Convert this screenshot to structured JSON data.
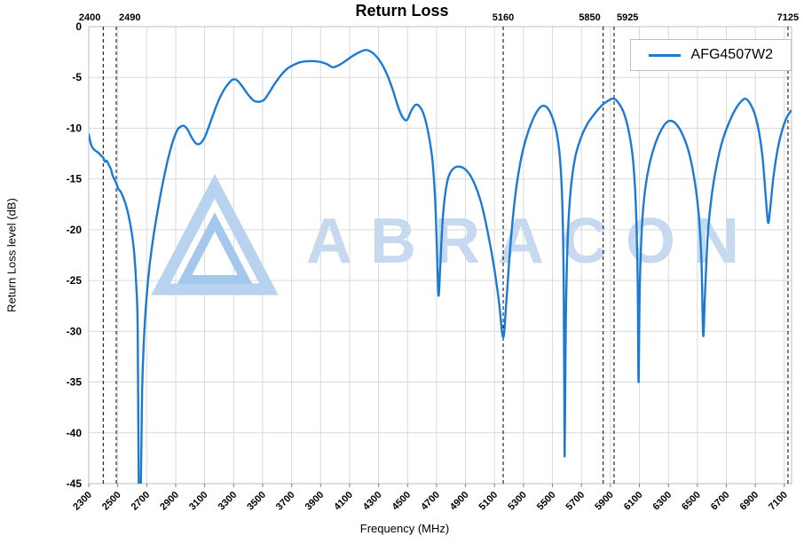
{
  "title": "Return Loss",
  "watermark": {
    "text": "ABRACON"
  },
  "colors": {
    "line": "#1b7ad3",
    "grid": "#d9d9d9",
    "border": "#bfbfbf",
    "vline": "#000000",
    "tick": "#808080",
    "watermark_outer": "#b7d3ef",
    "watermark_inner": "#a4c8ec",
    "watermark_text": "#c7d9ee"
  },
  "chart_data": {
    "type": "line",
    "title": "Return Loss",
    "xlabel": "Frequency (MHz)",
    "ylabel": "Return Loss level (dB)",
    "xlim": [
      2300,
      7150
    ],
    "ylim": [
      -45,
      0
    ],
    "xticks": [
      2300,
      2500,
      2700,
      2900,
      3100,
      3300,
      3500,
      3700,
      3900,
      4100,
      4300,
      4500,
      4700,
      4900,
      5100,
      5300,
      5500,
      5700,
      5900,
      6100,
      6300,
      6500,
      6700,
      6900,
      7100
    ],
    "yticks": [
      0,
      -5,
      -10,
      -15,
      -20,
      -25,
      -30,
      -35,
      -40,
      -45
    ],
    "grid": true,
    "legend_position": "top-right",
    "vlines": [
      {
        "x": 2400,
        "label": "2400",
        "align": "end"
      },
      {
        "x": 2490,
        "label": "2490",
        "align": "start"
      },
      {
        "x": 5160,
        "label": "5160",
        "align": "middle"
      },
      {
        "x": 5850,
        "label": "5850",
        "align": "end"
      },
      {
        "x": 5925,
        "label": "5925",
        "align": "start"
      },
      {
        "x": 7125,
        "label": "7125",
        "align": "middle"
      }
    ],
    "series": [
      {
        "name": "AFG4507W2",
        "color": "#1b7ad3",
        "points": [
          [
            2300,
            -10.6
          ],
          [
            2312,
            -11.4
          ],
          [
            2325,
            -11.9
          ],
          [
            2345,
            -12.2
          ],
          [
            2365,
            -12.4
          ],
          [
            2385,
            -12.7
          ],
          [
            2400,
            -12.9
          ],
          [
            2412,
            -13.3
          ],
          [
            2424,
            -13.2
          ],
          [
            2438,
            -13.6
          ],
          [
            2452,
            -14.0
          ],
          [
            2466,
            -14.7
          ],
          [
            2480,
            -15.1
          ],
          [
            2492,
            -15.5
          ],
          [
            2505,
            -16.0
          ],
          [
            2518,
            -16.2
          ],
          [
            2532,
            -16.6
          ],
          [
            2548,
            -17.2
          ],
          [
            2565,
            -18.0
          ],
          [
            2582,
            -19.1
          ],
          [
            2600,
            -20.6
          ],
          [
            2615,
            -22.5
          ],
          [
            2628,
            -25.5
          ],
          [
            2638,
            -30
          ],
          [
            2646,
            -47
          ],
          [
            2658,
            -47
          ],
          [
            2668,
            -36
          ],
          [
            2682,
            -30.5
          ],
          [
            2700,
            -26.5
          ],
          [
            2720,
            -23.5
          ],
          [
            2745,
            -20.8
          ],
          [
            2770,
            -18.6
          ],
          [
            2800,
            -16.2
          ],
          [
            2830,
            -14.1
          ],
          [
            2860,
            -12.3
          ],
          [
            2890,
            -10.9
          ],
          [
            2915,
            -10.1
          ],
          [
            2940,
            -9.8
          ],
          [
            2960,
            -9.8
          ],
          [
            2985,
            -10.2
          ],
          [
            3010,
            -10.9
          ],
          [
            3040,
            -11.5
          ],
          [
            3070,
            -11.5
          ],
          [
            3100,
            -10.9
          ],
          [
            3130,
            -9.8
          ],
          [
            3160,
            -8.6
          ],
          [
            3195,
            -7.3
          ],
          [
            3230,
            -6.3
          ],
          [
            3265,
            -5.6
          ],
          [
            3295,
            -5.2
          ],
          [
            3325,
            -5.3
          ],
          [
            3360,
            -5.9
          ],
          [
            3400,
            -6.7
          ],
          [
            3440,
            -7.3
          ],
          [
            3475,
            -7.4
          ],
          [
            3510,
            -7.2
          ],
          [
            3545,
            -6.5
          ],
          [
            3580,
            -5.7
          ],
          [
            3620,
            -4.9
          ],
          [
            3665,
            -4.2
          ],
          [
            3710,
            -3.8
          ],
          [
            3760,
            -3.5
          ],
          [
            3810,
            -3.4
          ],
          [
            3860,
            -3.4
          ],
          [
            3905,
            -3.5
          ],
          [
            3945,
            -3.7
          ],
          [
            3985,
            -4.0
          ],
          [
            4025,
            -3.8
          ],
          [
            4070,
            -3.4
          ],
          [
            4120,
            -2.9
          ],
          [
            4170,
            -2.5
          ],
          [
            4215,
            -2.3
          ],
          [
            4260,
            -2.6
          ],
          [
            4310,
            -3.4
          ],
          [
            4355,
            -4.6
          ],
          [
            4395,
            -6.1
          ],
          [
            4435,
            -7.9
          ],
          [
            4465,
            -8.9
          ],
          [
            4495,
            -9.2
          ],
          [
            4525,
            -8.3
          ],
          [
            4555,
            -7.7
          ],
          [
            4585,
            -7.9
          ],
          [
            4615,
            -8.8
          ],
          [
            4645,
            -10.6
          ],
          [
            4672,
            -13.2
          ],
          [
            4692,
            -17.5
          ],
          [
            4705,
            -23
          ],
          [
            4714,
            -26.5
          ],
          [
            4726,
            -23.5
          ],
          [
            4745,
            -18.5
          ],
          [
            4775,
            -15.2
          ],
          [
            4815,
            -14.0
          ],
          [
            4865,
            -13.8
          ],
          [
            4915,
            -14.3
          ],
          [
            4960,
            -15.4
          ],
          [
            5005,
            -17.2
          ],
          [
            5050,
            -20.0
          ],
          [
            5095,
            -23.5
          ],
          [
            5130,
            -27
          ],
          [
            5160,
            -30.6
          ],
          [
            5182,
            -27
          ],
          [
            5210,
            -21.5
          ],
          [
            5242,
            -16.8
          ],
          [
            5278,
            -13.4
          ],
          [
            5318,
            -11.0
          ],
          [
            5360,
            -9.3
          ],
          [
            5400,
            -8.2
          ],
          [
            5432,
            -7.8
          ],
          [
            5465,
            -8.0
          ],
          [
            5498,
            -8.9
          ],
          [
            5528,
            -10.4
          ],
          [
            5552,
            -13.0
          ],
          [
            5568,
            -17.5
          ],
          [
            5578,
            -26
          ],
          [
            5584,
            -42.3
          ],
          [
            5592,
            -29
          ],
          [
            5605,
            -21
          ],
          [
            5625,
            -16.2
          ],
          [
            5655,
            -13.0
          ],
          [
            5695,
            -11.0
          ],
          [
            5740,
            -9.6
          ],
          [
            5790,
            -8.6
          ],
          [
            5845,
            -7.7
          ],
          [
            5895,
            -7.2
          ],
          [
            5925,
            -7.1
          ],
          [
            5955,
            -7.5
          ],
          [
            5990,
            -8.4
          ],
          [
            6025,
            -10.2
          ],
          [
            6055,
            -13.0
          ],
          [
            6075,
            -17.5
          ],
          [
            6088,
            -25
          ],
          [
            6094,
            -35
          ],
          [
            6102,
            -26
          ],
          [
            6118,
            -19.5
          ],
          [
            6140,
            -16
          ],
          [
            6170,
            -13.5
          ],
          [
            6210,
            -11.5
          ],
          [
            6250,
            -10.2
          ],
          [
            6290,
            -9.4
          ],
          [
            6325,
            -9.3
          ],
          [
            6360,
            -9.7
          ],
          [
            6400,
            -10.7
          ],
          [
            6440,
            -12.3
          ],
          [
            6478,
            -14.9
          ],
          [
            6508,
            -18.3
          ],
          [
            6528,
            -23
          ],
          [
            6540,
            -30.4
          ],
          [
            6552,
            -26.5
          ],
          [
            6572,
            -20.5
          ],
          [
            6600,
            -16.5
          ],
          [
            6638,
            -13.3
          ],
          [
            6678,
            -11.0
          ],
          [
            6720,
            -9.4
          ],
          [
            6760,
            -8.2
          ],
          [
            6800,
            -7.4
          ],
          [
            6832,
            -7.1
          ],
          [
            6865,
            -7.6
          ],
          [
            6898,
            -8.7
          ],
          [
            6928,
            -10.6
          ],
          [
            6952,
            -13.2
          ],
          [
            6972,
            -16.8
          ],
          [
            6988,
            -19.3
          ],
          [
            7002,
            -18
          ],
          [
            7025,
            -14.8
          ],
          [
            7055,
            -12
          ],
          [
            7085,
            -10.2
          ],
          [
            7115,
            -9.0
          ],
          [
            7145,
            -8.3
          ]
        ]
      }
    ]
  }
}
